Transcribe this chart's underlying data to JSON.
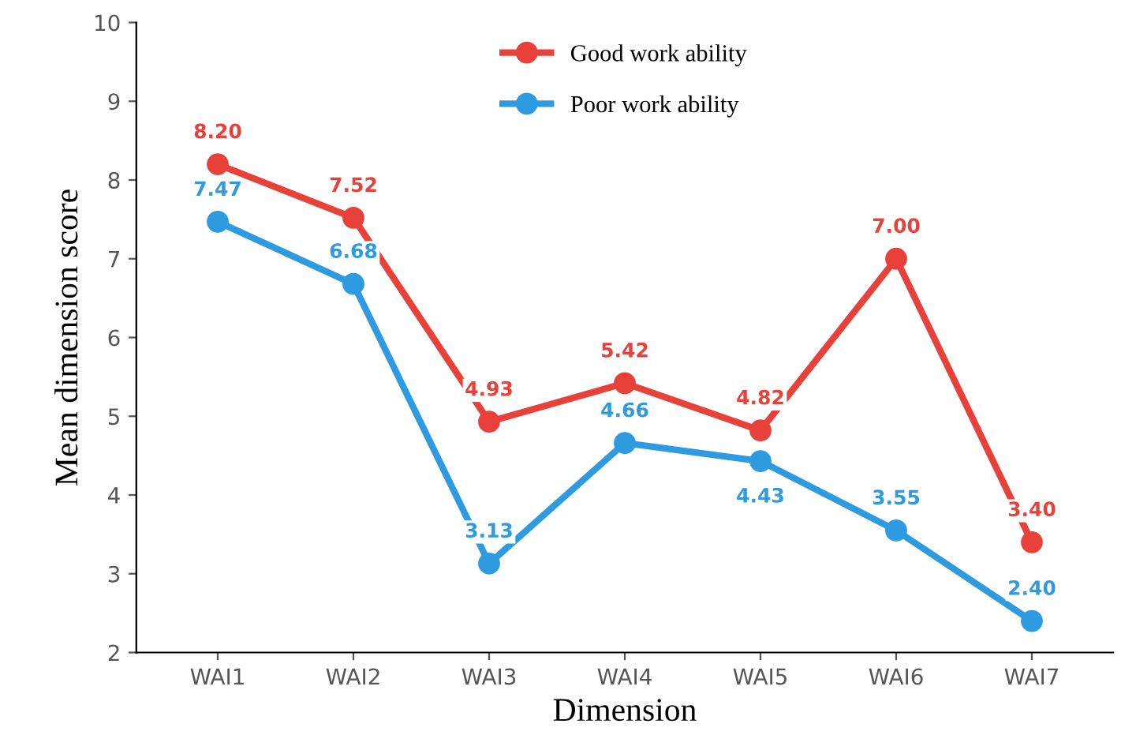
{
  "chart_data": {
    "type": "line",
    "xlabel": "Dimension",
    "ylabel": "Mean dimension score",
    "categories": [
      "WAI1",
      "WAI2",
      "WAI3",
      "WAI4",
      "WAI5",
      "WAI6",
      "WAI7"
    ],
    "series": [
      {
        "name": "Good work ability",
        "color": "#e8413a",
        "values": [
          8.2,
          7.52,
          4.93,
          5.42,
          4.82,
          7.0,
          3.4
        ],
        "value_labels": [
          "8.20",
          "7.52",
          "4.93",
          "5.42",
          "4.82",
          "7.00",
          "3.40"
        ]
      },
      {
        "name": "Poor work ability",
        "color": "#2e9be0",
        "values": [
          7.47,
          6.68,
          3.13,
          4.66,
          4.43,
          3.55,
          2.4
        ],
        "value_labels": [
          "7.47",
          "6.68",
          "3.13",
          "4.66",
          "4.43",
          "3.55",
          "2.40"
        ]
      }
    ],
    "ylim": [
      2,
      10
    ],
    "yticks": [
      2,
      3,
      4,
      5,
      6,
      7,
      8,
      9,
      10
    ],
    "grid": false,
    "legend": "top",
    "marker": "circle",
    "line_style": "solid"
  }
}
